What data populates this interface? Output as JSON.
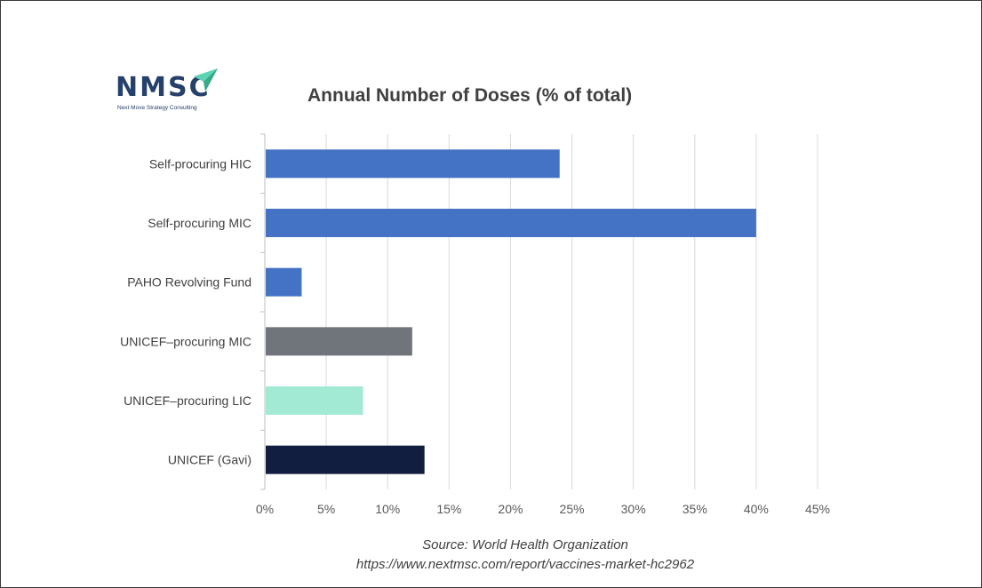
{
  "logo": {
    "text": "NMSC",
    "subtitle": "Next Move Strategy Consulting",
    "text_color": "#25406b",
    "accent_color": "#5fd3b4"
  },
  "chart_data": {
    "type": "bar",
    "orientation": "horizontal",
    "title": "Annual Number of Doses (% of total)",
    "categories": [
      "Self-procuring HIC",
      "Self-procuring MIC",
      "PAHO Revolving Fund",
      "UNICEF–procuring MIC",
      "UNICEF–procuring LIC",
      "UNICEF (Gavi)"
    ],
    "values": [
      24,
      40,
      3,
      12,
      8,
      13
    ],
    "colors": [
      "#4472c4",
      "#4472c4",
      "#4472c4",
      "#70757c",
      "#a3ead5",
      "#111e40"
    ],
    "xlim": [
      0,
      45
    ],
    "xticks": [
      "0%",
      "5%",
      "10%",
      "15%",
      "20%",
      "25%",
      "30%",
      "35%",
      "40%",
      "45%"
    ],
    "xlabel": "",
    "ylabel": "",
    "grid": true
  },
  "source": {
    "line1": "Source: World Health Organization",
    "line2": "https://www.nextmsc.com/report/vaccines-market-hc2962"
  }
}
